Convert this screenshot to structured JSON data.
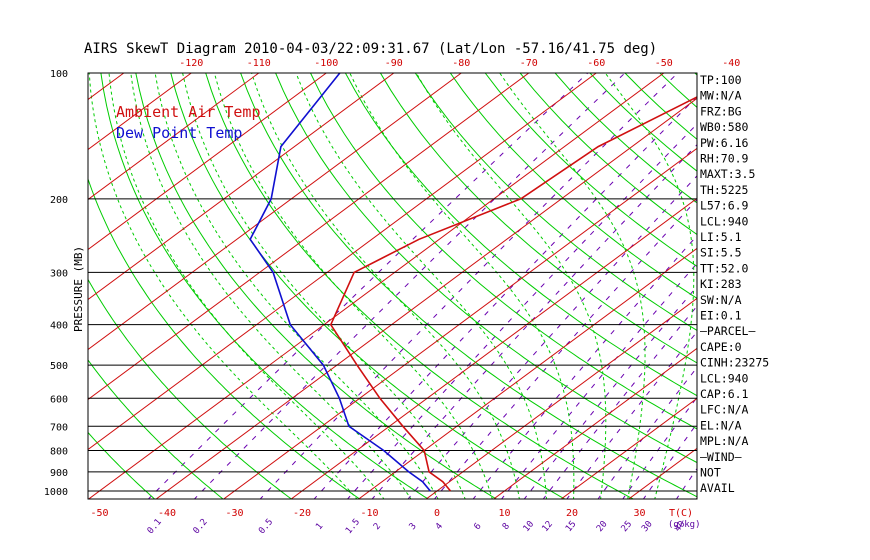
{
  "chart_data": {
    "type": "line",
    "title": "AIRS SkewT Diagram 2010-04-03/22:09:31.67 (Lat/Lon -57.16/41.75 deg)",
    "ylabel": "PRESSURE (MB)",
    "xlabel_bottom": "T(C)",
    "mixing_unit_label": "(g/kg)",
    "pressure_ticks": [
      1000,
      900,
      800,
      700,
      600,
      500,
      400,
      300,
      200,
      100
    ],
    "top_temp_ticks": [
      -120,
      -110,
      -100,
      -90,
      -80,
      -70,
      -60,
      -50,
      -40
    ],
    "bottom_temp_ticks": [
      -50,
      -40,
      -30,
      -20,
      -10,
      0,
      10,
      20,
      30
    ],
    "mixing_ratio_ticks": [
      "0.1",
      "0.2",
      "0.5",
      "1",
      "1.5",
      "2",
      "3",
      "4",
      "6",
      "8",
      "10",
      "12",
      "15",
      "20",
      "25",
      "30",
      "40"
    ],
    "legend": [
      {
        "name": "Ambient Air Temp",
        "color": "#d01010"
      },
      {
        "name": "Dew Point Temp",
        "color": "#1010d0"
      }
    ],
    "series": [
      {
        "name": "Ambient Air Temp",
        "color": "#d01010",
        "points": [
          {
            "p": 1000,
            "t": 2
          },
          {
            "p": 950,
            "t": -1
          },
          {
            "p": 900,
            "t": -5
          },
          {
            "p": 800,
            "t": -10
          },
          {
            "p": 700,
            "t": -18
          },
          {
            "p": 600,
            "t": -27
          },
          {
            "p": 500,
            "t": -37
          },
          {
            "p": 400,
            "t": -49
          },
          {
            "p": 300,
            "t": -56
          },
          {
            "p": 250,
            "t": -53
          },
          {
            "p": 200,
            "t": -46
          },
          {
            "p": 150,
            "t": -45
          },
          {
            "p": 100,
            "t": -38
          }
        ]
      },
      {
        "name": "Dew Point Temp",
        "color": "#1010d0",
        "points": [
          {
            "p": 1000,
            "t": -1
          },
          {
            "p": 950,
            "t": -4
          },
          {
            "p": 900,
            "t": -8
          },
          {
            "p": 800,
            "t": -16
          },
          {
            "p": 700,
            "t": -26
          },
          {
            "p": 600,
            "t": -33
          },
          {
            "p": 500,
            "t": -42
          },
          {
            "p": 400,
            "t": -55
          },
          {
            "p": 300,
            "t": -68
          },
          {
            "p": 250,
            "t": -78
          },
          {
            "p": 200,
            "t": -83
          },
          {
            "p": 150,
            "t": -92
          },
          {
            "p": 100,
            "t": -98
          }
        ]
      }
    ]
  },
  "stats": [
    "TP:100",
    "MW:N/A",
    "FRZ:BG",
    "WB0:580",
    "PW:6.16",
    "RH:70.9",
    "MAXT:3.5",
    "TH:5225",
    "L57:6.9",
    "LCL:940",
    "LI:5.1",
    "SI:5.5",
    "TT:52.0",
    "KI:283",
    "SW:N/A",
    "EI:0.1",
    "—PARCEL—",
    "CAPE:0",
    "CINH:23275",
    "LCL:940",
    "CAP:6.1",
    "LFC:N/A",
    "EL:N/A",
    "MPL:N/A",
    "—WIND—",
    "NOT",
    "AVAIL"
  ],
  "colors": {
    "dry_adiabat": "#00cc00",
    "moist_adiabat": "#00cc00",
    "isotherm": "#d01010",
    "mixing_ratio": "#6a00b0",
    "isobar": "#000000"
  }
}
